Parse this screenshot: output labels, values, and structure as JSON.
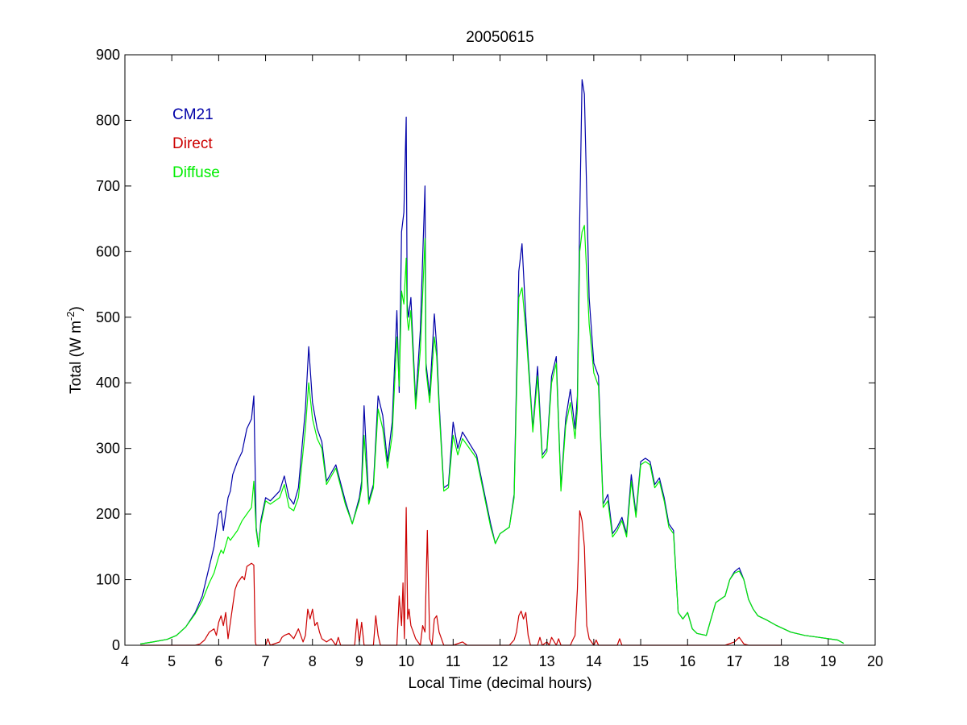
{
  "chart_data": {
    "type": "line",
    "title": "20050615",
    "xlabel": "Local Time (decimal hours)",
    "ylabel": {
      "base": "Total (W m",
      "sup": "-2",
      "end": ")"
    },
    "xlim": [
      4,
      20
    ],
    "ylim": [
      0,
      900
    ],
    "xticks": [
      4,
      5,
      6,
      7,
      8,
      9,
      10,
      11,
      12,
      13,
      14,
      15,
      16,
      17,
      18,
      19,
      20
    ],
    "yticks": [
      0,
      100,
      200,
      300,
      400,
      500,
      600,
      700,
      800,
      900
    ],
    "grid": false,
    "legend_position": "top-left",
    "series": [
      {
        "name": "CM21",
        "color": "#0000a8",
        "x": [
          4.33,
          4.6,
          4.9,
          5.1,
          5.3,
          5.5,
          5.65,
          5.8,
          5.9,
          6.0,
          6.05,
          6.1,
          6.2,
          6.25,
          6.3,
          6.4,
          6.5,
          6.6,
          6.7,
          6.75,
          6.8,
          6.85,
          6.9,
          7.0,
          7.1,
          7.3,
          7.4,
          7.5,
          7.6,
          7.7,
          7.85,
          7.92,
          8.0,
          8.1,
          8.2,
          8.3,
          8.5,
          8.7,
          8.85,
          9.0,
          9.05,
          9.1,
          9.2,
          9.3,
          9.4,
          9.5,
          9.6,
          9.7,
          9.8,
          9.85,
          9.9,
          9.95,
          10.0,
          10.02,
          10.05,
          10.1,
          10.2,
          10.3,
          10.4,
          10.42,
          10.5,
          10.6,
          10.65,
          10.7,
          10.8,
          10.9,
          11.0,
          11.1,
          11.2,
          11.5,
          11.8,
          11.9,
          12.0,
          12.2,
          12.3,
          12.4,
          12.47,
          12.55,
          12.6,
          12.7,
          12.8,
          12.9,
          13.0,
          13.1,
          13.2,
          13.3,
          13.4,
          13.5,
          13.6,
          13.65,
          13.7,
          13.75,
          13.8,
          13.9,
          14.0,
          14.1,
          14.2,
          14.3,
          14.4,
          14.5,
          14.6,
          14.7,
          14.8,
          14.9,
          15.0,
          15.1,
          15.2,
          15.3,
          15.4,
          15.5,
          15.6,
          15.7,
          15.8,
          15.9,
          16.0,
          16.1,
          16.2,
          16.4,
          16.5,
          16.6,
          16.8,
          16.9,
          17.0,
          17.1,
          17.2,
          17.3,
          17.4,
          17.5,
          17.7,
          17.9,
          18.2,
          18.5,
          18.8,
          19.0,
          19.2,
          19.33
        ],
        "values": [
          2,
          5,
          9,
          15,
          28,
          50,
          75,
          120,
          150,
          200,
          205,
          175,
          225,
          235,
          260,
          280,
          295,
          330,
          345,
          380,
          180,
          150,
          190,
          225,
          220,
          235,
          258,
          225,
          215,
          240,
          360,
          455,
          370,
          330,
          310,
          250,
          275,
          220,
          185,
          225,
          250,
          365,
          220,
          245,
          380,
          350,
          280,
          340,
          510,
          385,
          630,
          660,
          805,
          520,
          500,
          530,
          370,
          480,
          700,
          430,
          380,
          505,
          455,
          370,
          240,
          245,
          340,
          300,
          325,
          290,
          185,
          155,
          170,
          180,
          230,
          570,
          612,
          500,
          440,
          330,
          425,
          290,
          300,
          410,
          440,
          240,
          345,
          390,
          330,
          380,
          650,
          862,
          840,
          530,
          430,
          410,
          215,
          230,
          170,
          180,
          195,
          170,
          260,
          200,
          280,
          285,
          280,
          245,
          255,
          225,
          185,
          175,
          50,
          40,
          50,
          25,
          18,
          15,
          40,
          65,
          75,
          100,
          112,
          118,
          100,
          70,
          55,
          45,
          38,
          30,
          20,
          15,
          12,
          10,
          8,
          3
        ]
      },
      {
        "name": "Direct",
        "color": "#cc0000",
        "x": [
          4.33,
          5.5,
          5.6,
          5.7,
          5.8,
          5.9,
          5.95,
          6.0,
          6.05,
          6.1,
          6.15,
          6.2,
          6.3,
          6.35,
          6.4,
          6.5,
          6.55,
          6.6,
          6.7,
          6.75,
          6.78,
          6.8,
          7.0,
          7.05,
          7.1,
          7.3,
          7.35,
          7.4,
          7.5,
          7.6,
          7.7,
          7.8,
          7.85,
          7.9,
          7.95,
          8.0,
          8.05,
          8.1,
          8.15,
          8.2,
          8.3,
          8.4,
          8.5,
          8.55,
          8.6,
          8.9,
          8.95,
          9.0,
          9.05,
          9.1,
          9.3,
          9.35,
          9.4,
          9.45,
          9.8,
          9.85,
          9.9,
          9.93,
          9.96,
          10.0,
          10.03,
          10.06,
          10.1,
          10.15,
          10.2,
          10.3,
          10.35,
          10.4,
          10.45,
          10.5,
          10.55,
          10.6,
          10.65,
          10.7,
          10.8,
          11.0,
          11.2,
          11.3,
          12.2,
          12.3,
          12.35,
          12.4,
          12.45,
          12.5,
          12.55,
          12.6,
          12.65,
          12.8,
          12.85,
          12.9,
          13.0,
          13.05,
          13.1,
          13.2,
          13.25,
          13.3,
          13.5,
          13.55,
          13.6,
          13.65,
          13.7,
          13.75,
          13.8,
          13.85,
          13.9,
          14.0,
          14.05,
          14.1,
          14.5,
          14.55,
          14.6,
          15.0,
          15.5,
          16.8,
          17.0,
          17.1,
          17.2,
          17.3,
          18.0
        ],
        "values": [
          0,
          0,
          2,
          8,
          20,
          25,
          15,
          35,
          45,
          30,
          50,
          10,
          60,
          85,
          95,
          105,
          100,
          120,
          125,
          122,
          5,
          0,
          0,
          10,
          0,
          5,
          12,
          15,
          18,
          10,
          25,
          5,
          15,
          55,
          40,
          55,
          30,
          35,
          20,
          10,
          5,
          10,
          0,
          12,
          0,
          0,
          40,
          5,
          35,
          0,
          0,
          45,
          15,
          0,
          0,
          75,
          30,
          95,
          10,
          210,
          40,
          55,
          30,
          20,
          10,
          0,
          30,
          20,
          175,
          10,
          0,
          40,
          45,
          20,
          0,
          0,
          5,
          0,
          0,
          8,
          20,
          45,
          52,
          40,
          50,
          15,
          0,
          0,
          12,
          0,
          5,
          0,
          12,
          0,
          10,
          0,
          0,
          8,
          15,
          85,
          205,
          190,
          150,
          30,
          10,
          0,
          8,
          0,
          0,
          10,
          0,
          0,
          0,
          0,
          5,
          12,
          2,
          0,
          0
        ]
      },
      {
        "name": "Diffuse",
        "color": "#00ee00",
        "x": [
          4.33,
          4.6,
          4.9,
          5.1,
          5.3,
          5.5,
          5.65,
          5.8,
          5.9,
          6.0,
          6.05,
          6.1,
          6.2,
          6.25,
          6.3,
          6.4,
          6.5,
          6.6,
          6.7,
          6.75,
          6.8,
          6.85,
          6.9,
          7.0,
          7.1,
          7.3,
          7.4,
          7.5,
          7.6,
          7.7,
          7.85,
          7.92,
          8.0,
          8.1,
          8.2,
          8.3,
          8.5,
          8.7,
          8.85,
          9.0,
          9.05,
          9.1,
          9.2,
          9.3,
          9.4,
          9.5,
          9.6,
          9.7,
          9.8,
          9.85,
          9.9,
          9.95,
          10.0,
          10.02,
          10.05,
          10.1,
          10.2,
          10.3,
          10.4,
          10.42,
          10.5,
          10.6,
          10.65,
          10.7,
          10.8,
          10.9,
          11.0,
          11.1,
          11.2,
          11.5,
          11.8,
          11.9,
          12.0,
          12.2,
          12.3,
          12.4,
          12.47,
          12.55,
          12.6,
          12.7,
          12.8,
          12.9,
          13.0,
          13.1,
          13.2,
          13.3,
          13.4,
          13.5,
          13.6,
          13.65,
          13.7,
          13.75,
          13.8,
          13.9,
          14.0,
          14.1,
          14.2,
          14.3,
          14.4,
          14.5,
          14.6,
          14.7,
          14.8,
          14.9,
          15.0,
          15.1,
          15.2,
          15.3,
          15.4,
          15.5,
          15.6,
          15.7,
          15.8,
          15.9,
          16.0,
          16.1,
          16.2,
          16.4,
          16.5,
          16.6,
          16.8,
          16.9,
          17.0,
          17.1,
          17.2,
          17.3,
          17.4,
          17.5,
          17.7,
          17.9,
          18.2,
          18.5,
          18.8,
          19.0,
          19.2,
          19.33
        ],
        "values": [
          2,
          5,
          9,
          15,
          28,
          48,
          68,
          95,
          110,
          135,
          145,
          140,
          165,
          160,
          165,
          175,
          190,
          200,
          210,
          250,
          175,
          150,
          185,
          220,
          215,
          225,
          245,
          210,
          205,
          225,
          330,
          400,
          345,
          315,
          300,
          245,
          270,
          215,
          185,
          220,
          240,
          320,
          215,
          240,
          360,
          330,
          270,
          320,
          470,
          395,
          540,
          520,
          590,
          500,
          480,
          510,
          360,
          450,
          620,
          420,
          370,
          470,
          440,
          360,
          235,
          240,
          320,
          290,
          315,
          285,
          180,
          155,
          170,
          180,
          225,
          530,
          545,
          480,
          430,
          325,
          410,
          285,
          295,
          400,
          430,
          235,
          335,
          370,
          315,
          360,
          600,
          630,
          640,
          490,
          415,
          395,
          210,
          220,
          165,
          175,
          190,
          165,
          250,
          195,
          275,
          280,
          275,
          240,
          250,
          220,
          180,
          170,
          50,
          40,
          50,
          25,
          18,
          15,
          40,
          65,
          75,
          100,
          110,
          113,
          100,
          70,
          55,
          45,
          38,
          30,
          20,
          15,
          12,
          10,
          8,
          3
        ]
      }
    ]
  }
}
